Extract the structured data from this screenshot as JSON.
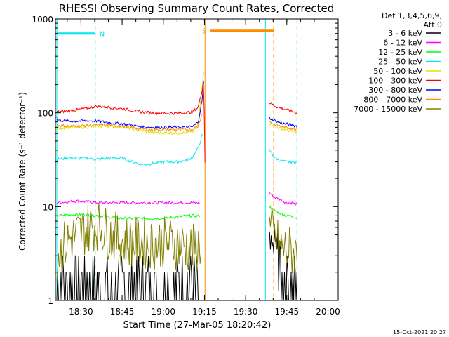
{
  "chart_data": {
    "type": "line",
    "title": "RHESSI Observing Summary Count Rates, Corrected",
    "xlabel": "Start Time (27-Mar-05 18:20:42)",
    "ylabel": "Corrected Count Rate (s⁻¹ detector⁻¹)",
    "x_unit": "minutes since 18:20:42",
    "xlim": [
      0,
      103
    ],
    "ylim": [
      1,
      1000
    ],
    "y_scale": "log",
    "grid": false,
    "legend_position": "right",
    "x_ticks": [
      {
        "label": "18:30",
        "x": 9.3
      },
      {
        "label": "18:45",
        "x": 24.3
      },
      {
        "label": "19:00",
        "x": 39.3
      },
      {
        "label": "19:15",
        "x": 54.3
      },
      {
        "label": "19:30",
        "x": 69.3
      },
      {
        "label": "19:45",
        "x": 84.3
      },
      {
        "label": "20:00",
        "x": 99.3
      }
    ],
    "y_ticks": [
      {
        "label": "1",
        "y": 1
      },
      {
        "label": "10",
        "y": 10
      },
      {
        "label": "100",
        "y": 100
      },
      {
        "label": "1000",
        "y": 1000
      }
    ],
    "legend_header": [
      "Det 1,3,4,5,6,9,",
      "Att 0"
    ],
    "series": [
      {
        "name": "3 - 6 keV",
        "color": "#000000",
        "style": "noisy-low",
        "segments": [
          {
            "x": [
              0.5,
              8,
              16,
              24,
              32,
              40,
              48,
              52
            ],
            "y": [
              1.2,
              1.2,
              1.2,
              1.2,
              1.2,
              1.2,
              1.2,
              1.2
            ]
          },
          {
            "x": [
              78,
              80,
              82,
              84,
              86,
              88
            ],
            "y": [
              5,
              3,
              2,
              1.3,
              1.2,
              1.2
            ]
          }
        ]
      },
      {
        "name": "6 - 12 keV",
        "color": "#ff00ff",
        "style": "normal",
        "segments": [
          {
            "x": [
              0.5,
              8,
              16,
              24,
              32,
              40,
              48,
              52.5
            ],
            "y": [
              11,
              11.5,
              11,
              11,
              11,
              11,
              11,
              11
            ]
          },
          {
            "x": [
              78,
              80,
              82,
              84,
              86,
              88
            ],
            "y": [
              14,
              12.5,
              12,
              11,
              11,
              10.5
            ]
          }
        ]
      },
      {
        "name": "12 - 25 keV",
        "color": "#00ff00",
        "style": "normal",
        "segments": [
          {
            "x": [
              0.5,
              8,
              16,
              24,
              32,
              40,
              48,
              52.5
            ],
            "y": [
              8,
              8.3,
              8,
              7.5,
              7.5,
              7.5,
              8,
              8
            ]
          },
          {
            "x": [
              78,
              80,
              82,
              84,
              86,
              88
            ],
            "y": [
              10,
              9,
              8.5,
              8,
              8,
              7.5
            ]
          }
        ]
      },
      {
        "name": "25 - 50 keV",
        "color": "#00e5ee",
        "style": "normal",
        "segments": [
          {
            "x": [
              0.5,
              5,
              10,
              15,
              20,
              24,
              28,
              32,
              36,
              40,
              44,
              48,
              50,
              52,
              53.5
            ],
            "y": [
              32,
              33,
              33,
              32,
              33,
              33,
              30,
              28,
              29,
              30,
              30,
              31,
              34,
              42,
              58
            ]
          },
          {
            "x": [
              78,
              80,
              82,
              84,
              86,
              88
            ],
            "y": [
              40,
              33,
              31,
              30,
              30,
              30
            ]
          }
        ]
      },
      {
        "name": "50 - 100 keV",
        "color": "#e0e000",
        "style": "normal",
        "segments": [
          {
            "x": [
              0.5,
              5,
              10,
              15,
              20,
              25,
              30,
              35,
              40,
              45,
              50,
              52,
              53.5,
              54
            ],
            "y": [
              68,
              70,
              70,
              72,
              72,
              70,
              66,
              62,
              61,
              61,
              62,
              75,
              200,
              280
            ]
          },
          {
            "x": [
              78,
              80,
              82,
              84,
              86,
              88
            ],
            "y": [
              78,
              72,
              68,
              66,
              63,
              62
            ]
          }
        ]
      },
      {
        "name": "100 - 300 keV",
        "color": "#ff0000",
        "style": "normal",
        "segments": [
          {
            "x": [
              0.5,
              5,
              10,
              15,
              20,
              25,
              30,
              35,
              40,
              45,
              50,
              52,
              53.5,
              54,
              54.5
            ],
            "y": [
              102,
              105,
              110,
              118,
              114,
              110,
              103,
              100,
              99,
              99,
              102,
              115,
              175,
              240,
              30
            ]
          },
          {
            "x": [
              78,
              80,
              82,
              84,
              86,
              88
            ],
            "y": [
              128,
              118,
              112,
              108,
              104,
              100
            ]
          }
        ]
      },
      {
        "name": "300 - 800 keV",
        "color": "#0000ff",
        "style": "normal",
        "segments": [
          {
            "x": [
              0.5,
              5,
              10,
              15,
              20,
              25,
              30,
              35,
              40,
              45,
              50,
              52,
              53.5,
              54
            ],
            "y": [
              84,
              81,
              82,
              82,
              78,
              76,
              72,
              70,
              70,
              70,
              71,
              80,
              140,
              210
            ]
          },
          {
            "x": [
              78,
              80,
              82,
              84,
              86,
              88
            ],
            "y": [
              88,
              82,
              78,
              76,
              74,
              72
            ]
          }
        ]
      },
      {
        "name": "800 - 7000 keV",
        "color": "#ff8c00",
        "style": "normal",
        "segments": [
          {
            "x": [
              0.5,
              5,
              10,
              15,
              20,
              25,
              30,
              35,
              40,
              45,
              50,
              52,
              53.5
            ],
            "y": [
              74,
              72,
              73,
              74,
              74,
              72,
              68,
              66,
              66,
              66,
              67,
              72,
              100
            ]
          },
          {
            "x": [
              78,
              80,
              82,
              84,
              86,
              88
            ],
            "y": [
              80,
              75,
              72,
              70,
              68,
              67
            ]
          }
        ]
      },
      {
        "name": "7000 - 15000 keV",
        "color": "#808000",
        "style": "noisy-band",
        "segments": [
          {
            "x": [
              0.5,
              5,
              10,
              15,
              20,
              25,
              30,
              35,
              40,
              45,
              50,
              53
            ],
            "y": [
              3,
              4.5,
              5.5,
              6.5,
              5,
              4.2,
              4.2,
              4,
              4.2,
              4,
              3.5,
              4
            ]
          },
          {
            "x": [
              78,
              80,
              82,
              84,
              86,
              88
            ],
            "y": [
              6,
              4.5,
              3.6,
              3.5,
              3.3,
              3.2
            ]
          }
        ]
      }
    ],
    "annotations": [
      {
        "label": "N",
        "color": "#00e5ee",
        "x_start": 0.5,
        "x_end": 14.5,
        "y": 700
      },
      {
        "label": "S",
        "color": "#ff8c00",
        "x_start": 56.5,
        "x_end": 79.5,
        "y": 750
      }
    ],
    "vertical_lines": [
      {
        "x": 0.5,
        "color": "#00e5ee",
        "style": "solid"
      },
      {
        "x": 14.5,
        "color": "#00e5ee",
        "style": "dashed"
      },
      {
        "x": 54.5,
        "color": "#ff8c00",
        "style": "solid"
      },
      {
        "x": 76.5,
        "color": "#00e5ee",
        "style": "solid"
      },
      {
        "x": 79.5,
        "color": "#ff8c00",
        "style": "dashed"
      },
      {
        "x": 88,
        "color": "#00e5ee",
        "style": "dashed"
      }
    ],
    "timestamp": "15-Oct-2021 20:27"
  }
}
